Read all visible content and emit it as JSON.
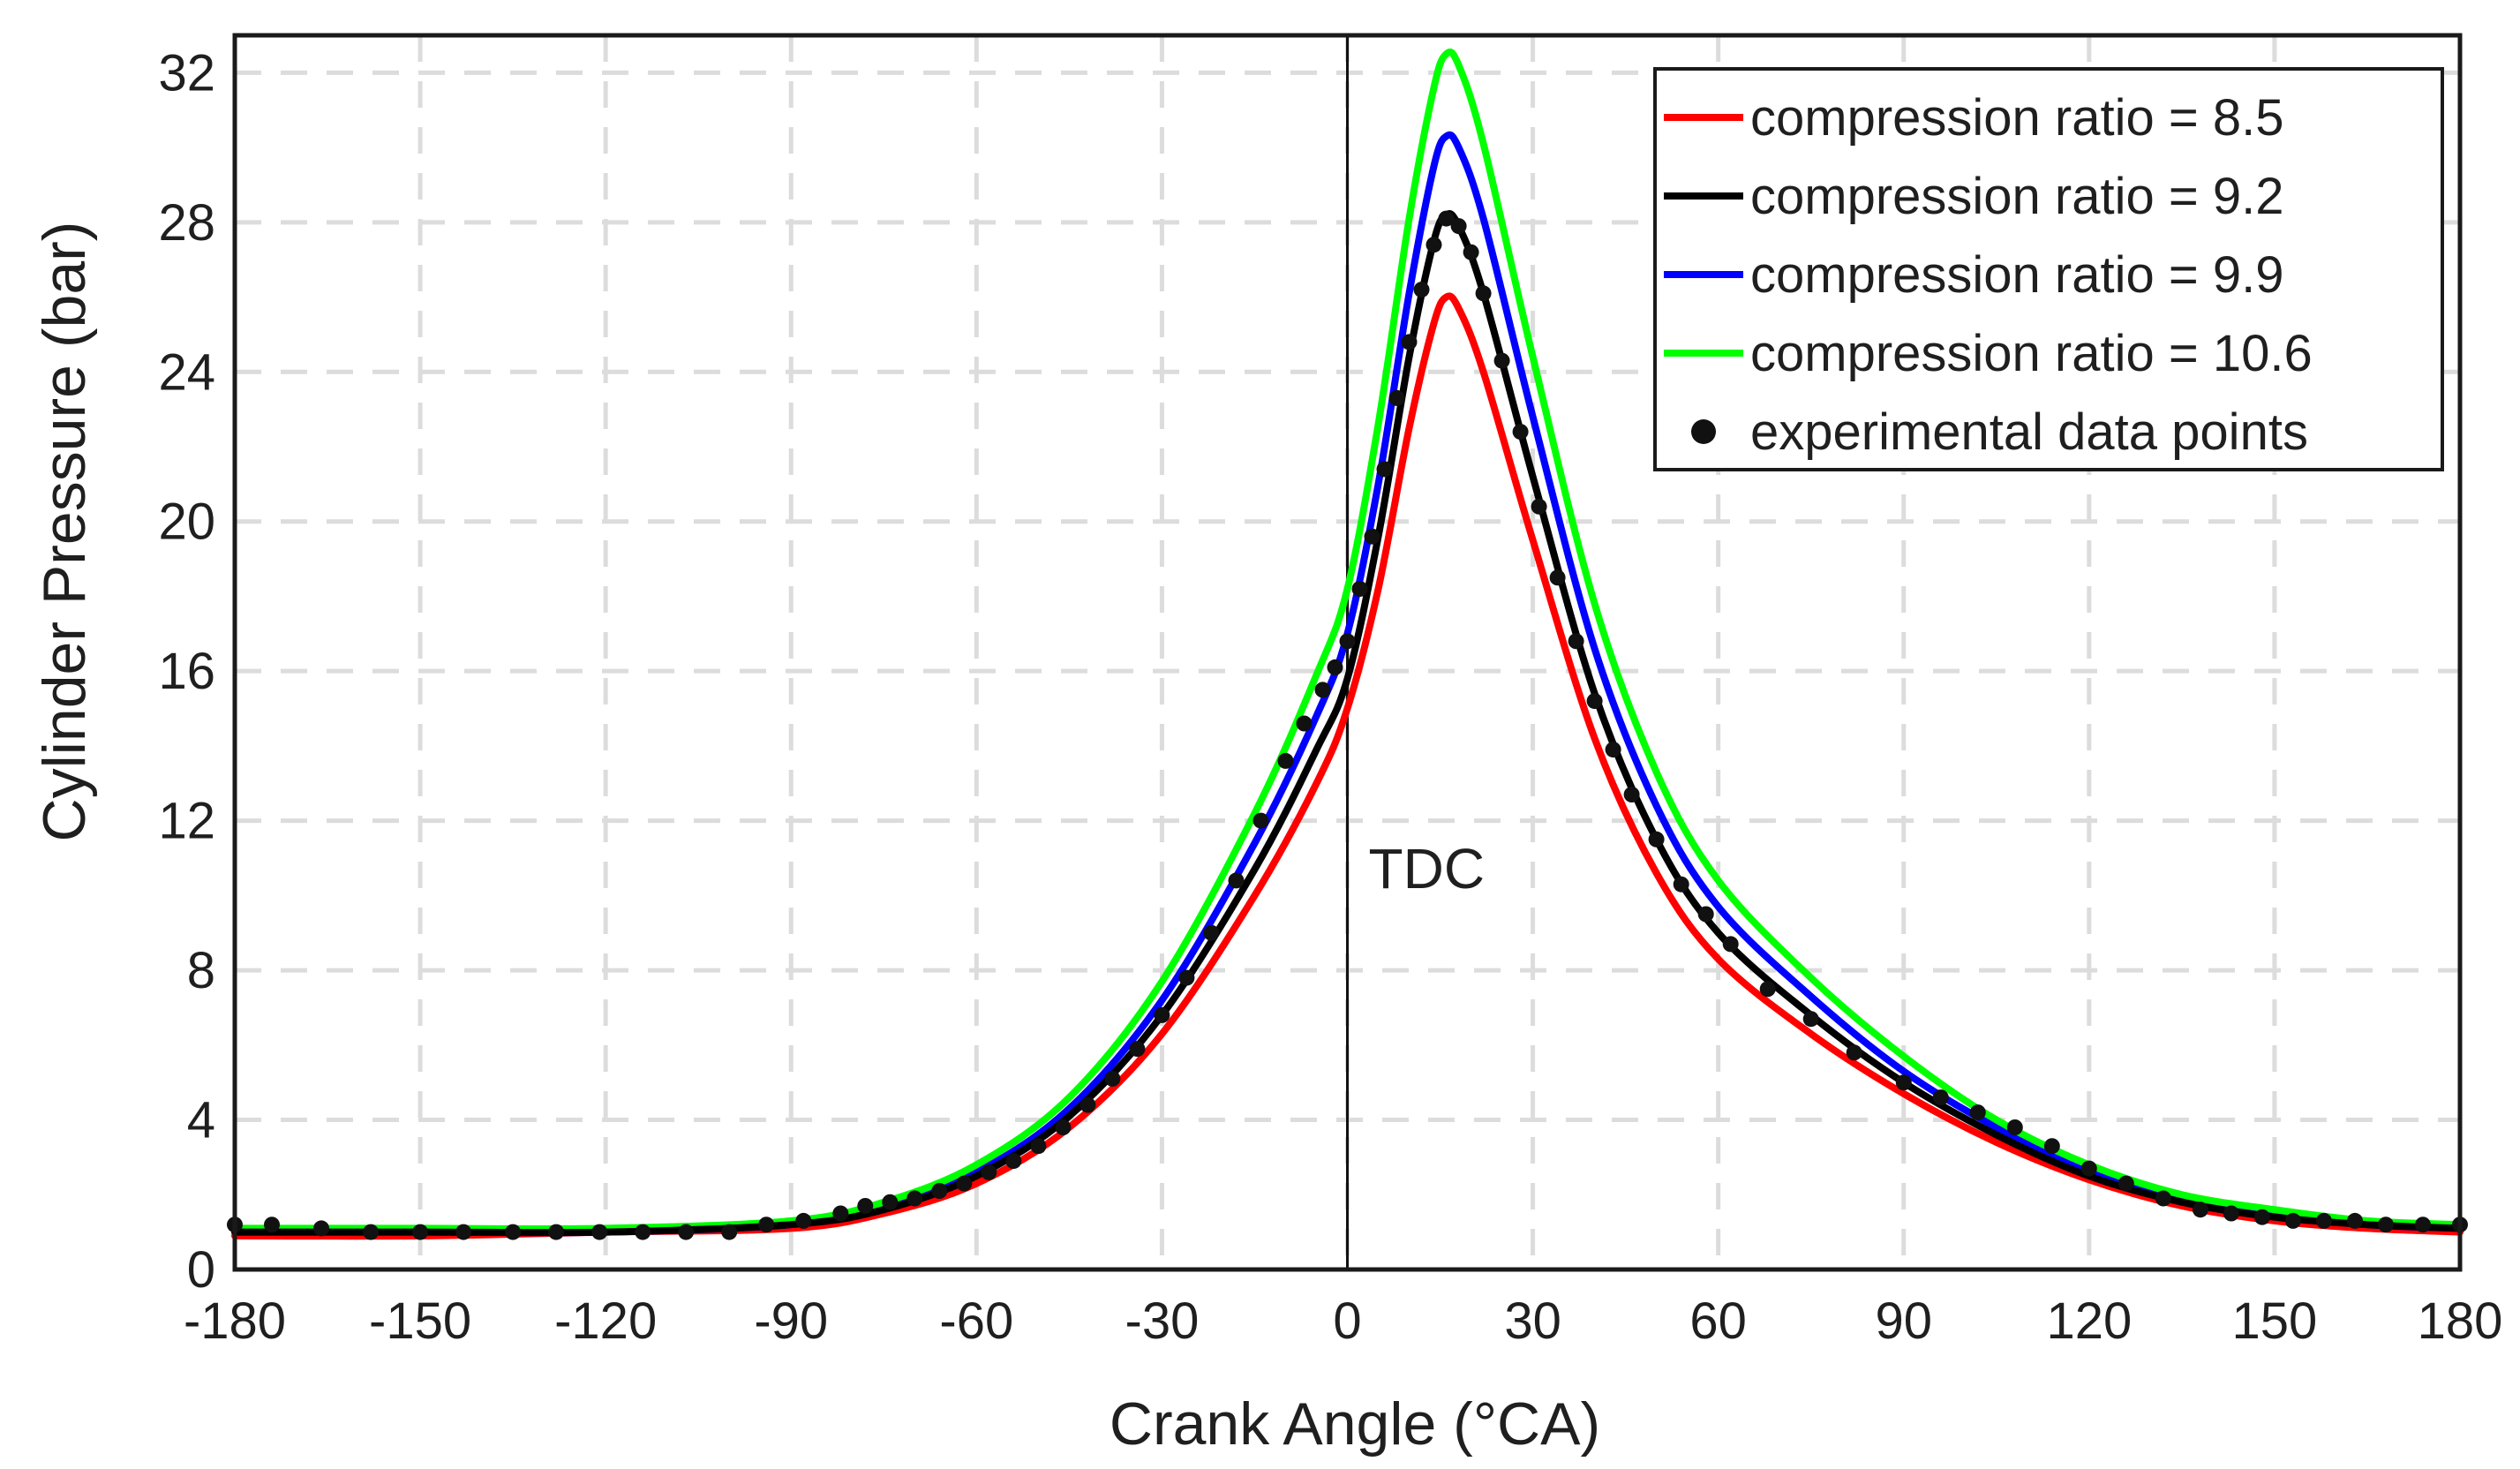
{
  "chart_data": {
    "type": "line",
    "xlabel": "Crank Angle (°CA)",
    "ylabel": "Cylinder Pressure (bar)",
    "xlim": [
      -180,
      180
    ],
    "ylim": [
      0,
      33
    ],
    "xticks": [
      -180,
      -150,
      -120,
      -90,
      -60,
      -30,
      0,
      30,
      60,
      90,
      120,
      150,
      180
    ],
    "yticks": [
      0,
      4,
      8,
      12,
      16,
      20,
      24,
      28,
      32
    ],
    "grid": true,
    "legend_position": "top-right",
    "annotation": {
      "text": "TDC",
      "x": 0
    },
    "x": [
      -180,
      -150,
      -120,
      -90,
      -75,
      -60,
      -45,
      -30,
      -15,
      -5,
      0,
      5,
      10,
      14,
      16,
      18,
      22,
      30,
      40,
      50,
      60,
      75,
      90,
      105,
      120,
      135,
      150,
      165,
      180
    ],
    "series": [
      {
        "name": "compression ratio = 8.5",
        "color": "#ff0000",
        "values": [
          0.9,
          0.9,
          1.0,
          1.1,
          1.5,
          2.3,
          3.8,
          6.3,
          10.0,
          13.0,
          15.0,
          18.2,
          22.5,
          25.3,
          26.0,
          25.7,
          24.0,
          19.5,
          14.2,
          10.6,
          8.3,
          6.3,
          4.7,
          3.4,
          2.4,
          1.7,
          1.3,
          1.1,
          1.0
        ]
      },
      {
        "name": "compression ratio = 9.2",
        "color": "#000000",
        "values": [
          1.0,
          1.0,
          1.0,
          1.2,
          1.6,
          2.5,
          4.1,
          6.8,
          10.7,
          13.9,
          15.8,
          19.6,
          24.4,
          27.5,
          28.2,
          27.9,
          26.1,
          21.2,
          15.4,
          11.5,
          9.0,
          6.8,
          5.0,
          3.6,
          2.5,
          1.8,
          1.4,
          1.2,
          1.1
        ]
      },
      {
        "name": "compression ratio = 9.9",
        "color": "#0000ff",
        "values": [
          1.0,
          1.0,
          1.0,
          1.2,
          1.7,
          2.6,
          4.3,
          7.2,
          11.4,
          14.8,
          17.0,
          21.0,
          26.1,
          29.5,
          30.3,
          30.0,
          28.1,
          22.8,
          16.6,
          12.4,
          9.7,
          7.3,
          5.3,
          3.8,
          2.6,
          1.9,
          1.5,
          1.2,
          1.1
        ]
      },
      {
        "name": "compression ratio = 10.6",
        "color": "#00ff00",
        "values": [
          1.1,
          1.1,
          1.1,
          1.3,
          1.8,
          2.8,
          4.6,
          7.7,
          12.2,
          15.9,
          18.2,
          22.6,
          28.1,
          31.6,
          32.5,
          32.2,
          30.1,
          24.4,
          17.8,
          13.3,
          10.4,
          7.8,
          5.7,
          4.0,
          2.8,
          2.0,
          1.6,
          1.3,
          1.2
        ]
      },
      {
        "name": "experimental data points",
        "color": "#000000",
        "marker": "circle",
        "x": [
          -180,
          -174,
          -166,
          -158,
          -150,
          -143,
          -135,
          -128,
          -121,
          -114,
          -107,
          -100,
          -94,
          -88,
          -82,
          -78,
          -74,
          -70,
          -66,
          -62,
          -58,
          -54,
          -50,
          -46,
          -42,
          -38,
          -34,
          -30,
          -26,
          -22,
          -18,
          -14,
          -10,
          -7,
          -4,
          -2,
          0,
          2,
          4,
          6,
          8,
          10,
          12,
          14,
          16,
          18,
          20,
          22,
          25,
          28,
          31,
          34,
          37,
          40,
          43,
          46,
          50,
          54,
          58,
          62,
          68,
          75,
          82,
          90,
          96,
          102,
          108,
          114,
          120,
          126,
          132,
          138,
          143,
          148,
          153,
          158,
          163,
          168,
          174,
          180
        ],
        "values": [
          1.2,
          1.2,
          1.1,
          1.0,
          1.0,
          1.0,
          1.0,
          1.0,
          1.0,
          1.0,
          1.0,
          1.0,
          1.2,
          1.3,
          1.5,
          1.7,
          1.8,
          1.9,
          2.1,
          2.3,
          2.6,
          2.9,
          3.3,
          3.8,
          4.4,
          5.1,
          5.9,
          6.8,
          7.8,
          9.0,
          10.4,
          12.0,
          13.6,
          14.6,
          15.5,
          16.1,
          16.8,
          18.2,
          19.6,
          21.4,
          23.3,
          24.8,
          26.2,
          27.4,
          28.1,
          27.9,
          27.2,
          26.1,
          24.3,
          22.4,
          20.4,
          18.5,
          16.8,
          15.2,
          13.9,
          12.7,
          11.5,
          10.3,
          9.5,
          8.7,
          7.5,
          6.7,
          5.8,
          5.0,
          4.6,
          4.2,
          3.8,
          3.3,
          2.7,
          2.3,
          1.9,
          1.6,
          1.5,
          1.4,
          1.3,
          1.3,
          1.3,
          1.2,
          1.2,
          1.2
        ]
      }
    ]
  }
}
